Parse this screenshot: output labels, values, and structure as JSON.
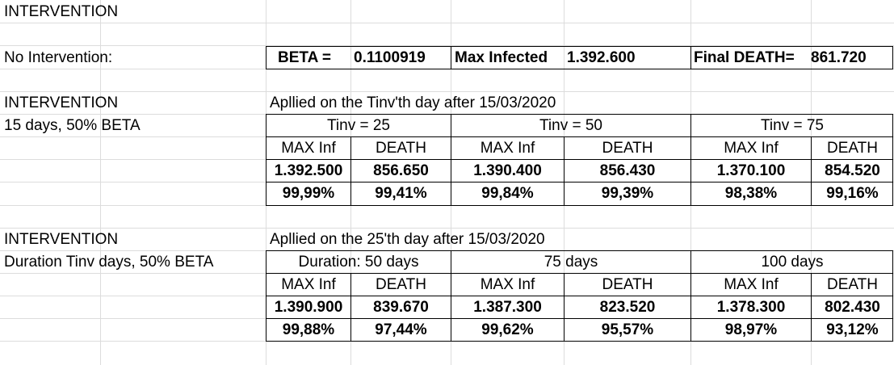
{
  "title": "INTERVENTION",
  "no_intervention": {
    "label": "No Intervention:",
    "beta_label": "BETA =",
    "beta_value": "0.1100919",
    "max_infected_label": "Max Infected",
    "max_infected_value": "1.392.600",
    "final_death_label": "Final DEATH=",
    "final_death_value": "861.720"
  },
  "sections": [
    {
      "heading": "INTERVENTION",
      "subheading": "15 days, 50% BETA",
      "applied": "Apllied on the Tinv'th day after 15/03/2020",
      "groups": [
        {
          "header": "Tinv = 25",
          "max_label": "MAX Inf",
          "death_label": "DEATH",
          "max_value": "1.392.500",
          "death_value": "856.650",
          "max_pct": "99,99%",
          "death_pct": "99,41%"
        },
        {
          "header": "Tinv = 50",
          "max_label": "MAX Inf",
          "death_label": "DEATH",
          "max_value": "1.390.400",
          "death_value": "856.430",
          "max_pct": "99,84%",
          "death_pct": "99,39%"
        },
        {
          "header": "Tinv = 75",
          "max_label": "MAX Inf",
          "death_label": "DEATH",
          "max_value": "1.370.100",
          "death_value": "854.520",
          "max_pct": "98,38%",
          "death_pct": "99,16%"
        }
      ]
    },
    {
      "heading": "INTERVENTION",
      "subheading": "Duration Tinv days, 50% BETA",
      "applied": "Apllied on the 25'th day after 15/03/2020",
      "groups": [
        {
          "header": "Duration: 50 days",
          "max_label": "MAX Inf",
          "death_label": "DEATH",
          "max_value": "1.390.900",
          "death_value": "839.670",
          "max_pct": "99,88%",
          "death_pct": "97,44%"
        },
        {
          "header": "75 days",
          "max_label": "MAX Inf",
          "death_label": "DEATH",
          "max_value": "1.387.300",
          "death_value": "823.520",
          "max_pct": "99,62%",
          "death_pct": "95,57%"
        },
        {
          "header": "100 days",
          "max_label": "MAX Inf",
          "death_label": "DEATH",
          "max_value": "1.378.300",
          "death_value": "802.430",
          "max_pct": "98,97%",
          "death_pct": "93,12%"
        }
      ]
    }
  ]
}
